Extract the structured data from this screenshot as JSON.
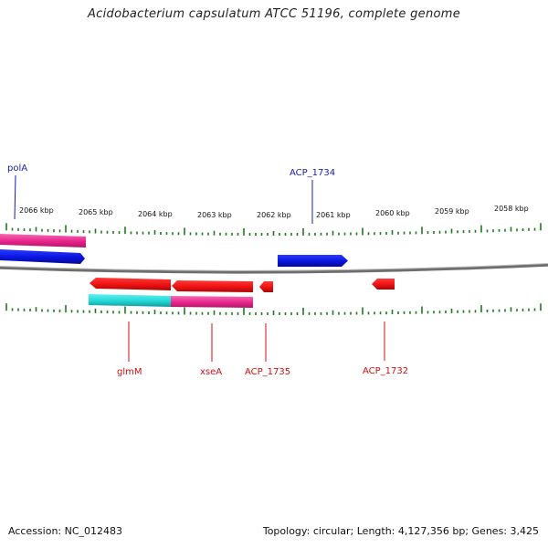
{
  "title": "Acidobacterium capsulatum ATCC 51196, complete genome",
  "colors": {
    "forward": "#0a14e0",
    "reverse": "#ee1111",
    "pink": "#f03a9a",
    "cyan": "#22d6d6",
    "backbone": "#7a7a7a",
    "tick": "#1e7a1e",
    "forward_label": "#1a1ab8",
    "reverse_label": "#cc1111"
  },
  "scale": {
    "unit": "kbp",
    "tick_labels": [
      "2066 kbp",
      "2065 kbp",
      "2064 kbp",
      "2063 kbp",
      "2062 kbp",
      "2061 kbp",
      "2060 kbp",
      "2059 kbp",
      "2058 kbp"
    ]
  },
  "genes": {
    "forward_labels": [
      {
        "name": "polA",
        "icon": "forward-gene-arrow"
      },
      {
        "name": "ACP_1734",
        "icon": "forward-gene-arrow"
      }
    ],
    "reverse_labels": [
      {
        "name": "glmM",
        "icon": "reverse-gene-arrow"
      },
      {
        "name": "xseA",
        "icon": "reverse-gene-arrow"
      },
      {
        "name": "ACP_1735",
        "icon": "reverse-gene-arrow"
      },
      {
        "name": "ACP_1732",
        "icon": "reverse-gene-arrow"
      }
    ]
  },
  "footer": {
    "accession": "Accession: NC_012483",
    "stats": "Topology: circular; Length: 4,127,356 bp; Genes: 3,425"
  }
}
